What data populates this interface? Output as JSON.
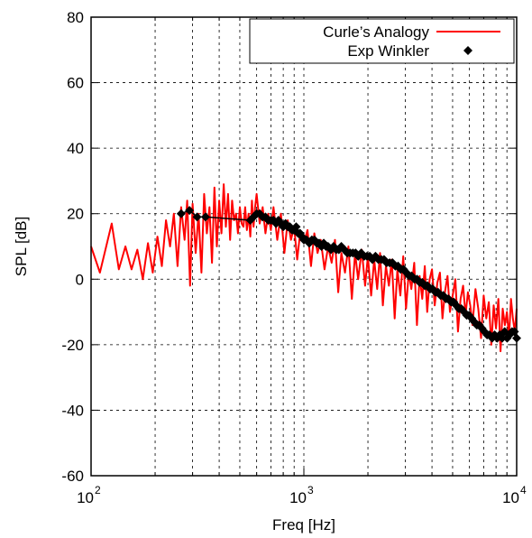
{
  "chart_data": {
    "type": "line",
    "xlabel": "Freq [Hz]",
    "ylabel": "SPL [dB]",
    "xscale": "log",
    "xlim": [
      100,
      10000
    ],
    "ylim": [
      -60,
      80
    ],
    "x_ticks": [
      {
        "base": "10",
        "exp": "2",
        "value": 100
      },
      {
        "base": "10",
        "exp": "3",
        "value": 1000
      },
      {
        "base": "10",
        "exp": "4",
        "value": 10000
      }
    ],
    "y_ticks": [
      "-60",
      "-40",
      "-20",
      "0",
      "20",
      "40",
      "60",
      "80"
    ],
    "grid": true,
    "legend": {
      "position": "top-right",
      "entries": [
        {
          "label": "Curle’s Analogy",
          "style": "line",
          "color": "#ff0000"
        },
        {
          "label": "Exp Winkler",
          "style": "diamond",
          "color": "#000000"
        }
      ]
    },
    "series": [
      {
        "name": "Curle’s Analogy",
        "style": "line",
        "color": "#ff0000",
        "x": [
          100,
          110,
          125,
          135,
          145,
          155,
          165,
          175,
          185,
          195,
          205,
          215,
          225,
          235,
          245,
          255,
          265,
          275,
          283,
          292,
          300,
          310,
          320,
          330,
          340,
          350,
          360,
          370,
          380,
          390,
          400,
          410,
          420,
          430,
          440,
          450,
          460,
          470,
          480,
          490,
          500,
          510,
          520,
          530,
          540,
          550,
          560,
          570,
          580,
          590,
          600,
          620,
          640,
          660,
          680,
          700,
          720,
          750,
          780,
          810,
          840,
          870,
          900,
          930,
          960,
          1000,
          1040,
          1080,
          1120,
          1160,
          1200,
          1250,
          1300,
          1350,
          1400,
          1450,
          1500,
          1560,
          1620,
          1680,
          1740,
          1800,
          1870,
          1940,
          2000,
          2070,
          2140,
          2210,
          2280,
          2350,
          2430,
          2510,
          2590,
          2670,
          2750,
          2840,
          2930,
          3020,
          3110,
          3200,
          3300,
          3400,
          3500,
          3600,
          3700,
          3800,
          3900,
          4000,
          4120,
          4240,
          4360,
          4480,
          4600,
          4730,
          4860,
          5000,
          5150,
          5300,
          5450,
          5600,
          5750,
          5900,
          6050,
          6200,
          6400,
          6600,
          6800,
          7000,
          7200,
          7400,
          7600,
          7800,
          8000,
          8200,
          8400,
          8600,
          8800,
          9000,
          9200,
          9400,
          9600,
          9800,
          10000
        ],
        "y": [
          10,
          2,
          17,
          3,
          10,
          3,
          9,
          0,
          11,
          2,
          13,
          4,
          18,
          10,
          20,
          4,
          22,
          12,
          24,
          -2,
          23,
          8,
          20,
          2,
          26,
          14,
          22,
          5,
          28,
          10,
          24,
          14,
          29,
          16,
          26,
          12,
          24,
          18,
          20,
          14,
          22,
          17,
          16,
          22,
          15,
          20,
          13,
          24,
          16,
          22,
          26,
          17,
          22,
          14,
          20,
          15,
          22,
          12,
          20,
          8,
          18,
          12,
          16,
          6,
          14,
          11,
          15,
          4,
          14,
          8,
          12,
          3,
          10,
          5,
          12,
          -4,
          8,
          2,
          10,
          -6,
          8,
          0,
          9,
          -2,
          7,
          -5,
          6,
          -3,
          8,
          -8,
          4,
          -2,
          6,
          -12,
          3,
          -5,
          7,
          -9,
          2,
          -3,
          5,
          -14,
          1,
          -6,
          4,
          -10,
          0,
          3,
          -8,
          -1,
          2,
          -12,
          -4,
          1,
          -10,
          -5,
          0,
          -16,
          -6,
          -2,
          -11,
          -4,
          -8,
          -14,
          -3,
          -9,
          -18,
          -5,
          -12,
          -7,
          -20,
          -8,
          -15,
          -6,
          -22,
          -9,
          -14,
          -10,
          -18,
          -6,
          -12,
          -16,
          -9
        ]
      },
      {
        "name": "Exp Winkler",
        "style": "diamond",
        "color": "#000000",
        "x": [
          265,
          290,
          315,
          345,
          560,
          580,
          600,
          620,
          640,
          660,
          680,
          700,
          720,
          740,
          760,
          780,
          800,
          820,
          840,
          860,
          880,
          900,
          920,
          940,
          960,
          980,
          1000,
          1030,
          1060,
          1090,
          1120,
          1150,
          1180,
          1210,
          1240,
          1270,
          1300,
          1340,
          1380,
          1420,
          1460,
          1500,
          1550,
          1600,
          1650,
          1700,
          1750,
          1800,
          1860,
          1920,
          1980,
          2040,
          2100,
          2170,
          2240,
          2310,
          2380,
          2450,
          2530,
          2610,
          2690,
          2770,
          2850,
          2940,
          3030,
          3120,
          3210,
          3300,
          3400,
          3500,
          3600,
          3700,
          3810,
          3920,
          4030,
          4150,
          4270,
          4390,
          4520,
          4650,
          4780,
          4920,
          5060,
          5200,
          5350,
          5500,
          5660,
          5820,
          5980,
          6150,
          6320,
          6500,
          6680,
          6870,
          7060,
          7260,
          7460,
          7670,
          7880,
          8100,
          8320,
          8550,
          8780,
          9020,
          9260,
          9510,
          9760,
          10000
        ],
        "y": [
          20,
          21,
          19,
          19,
          18,
          19,
          20,
          20,
          19,
          19,
          18,
          18,
          18,
          17,
          18,
          17,
          16,
          17,
          16,
          16,
          15,
          15,
          16,
          14,
          14,
          13,
          12,
          12,
          11,
          12,
          12,
          11,
          11,
          10,
          11,
          10,
          10,
          9,
          10,
          9,
          9,
          10,
          9,
          8,
          8,
          8,
          8,
          7,
          8,
          7,
          7,
          7,
          6,
          7,
          6,
          6,
          6,
          5,
          5,
          5,
          4,
          4,
          3,
          3,
          2,
          1,
          1,
          0,
          0,
          -1,
          -1,
          -2,
          -2,
          -3,
          -3,
          -4,
          -4,
          -5,
          -5,
          -6,
          -6,
          -7,
          -7,
          -8,
          -9,
          -9,
          -10,
          -11,
          -11,
          -12,
          -13,
          -14,
          -14,
          -15,
          -16,
          -17,
          -17,
          -18,
          -17,
          -18,
          -17,
          -18,
          -16,
          -18,
          -17,
          -16,
          -16,
          -18
        ]
      }
    ]
  }
}
